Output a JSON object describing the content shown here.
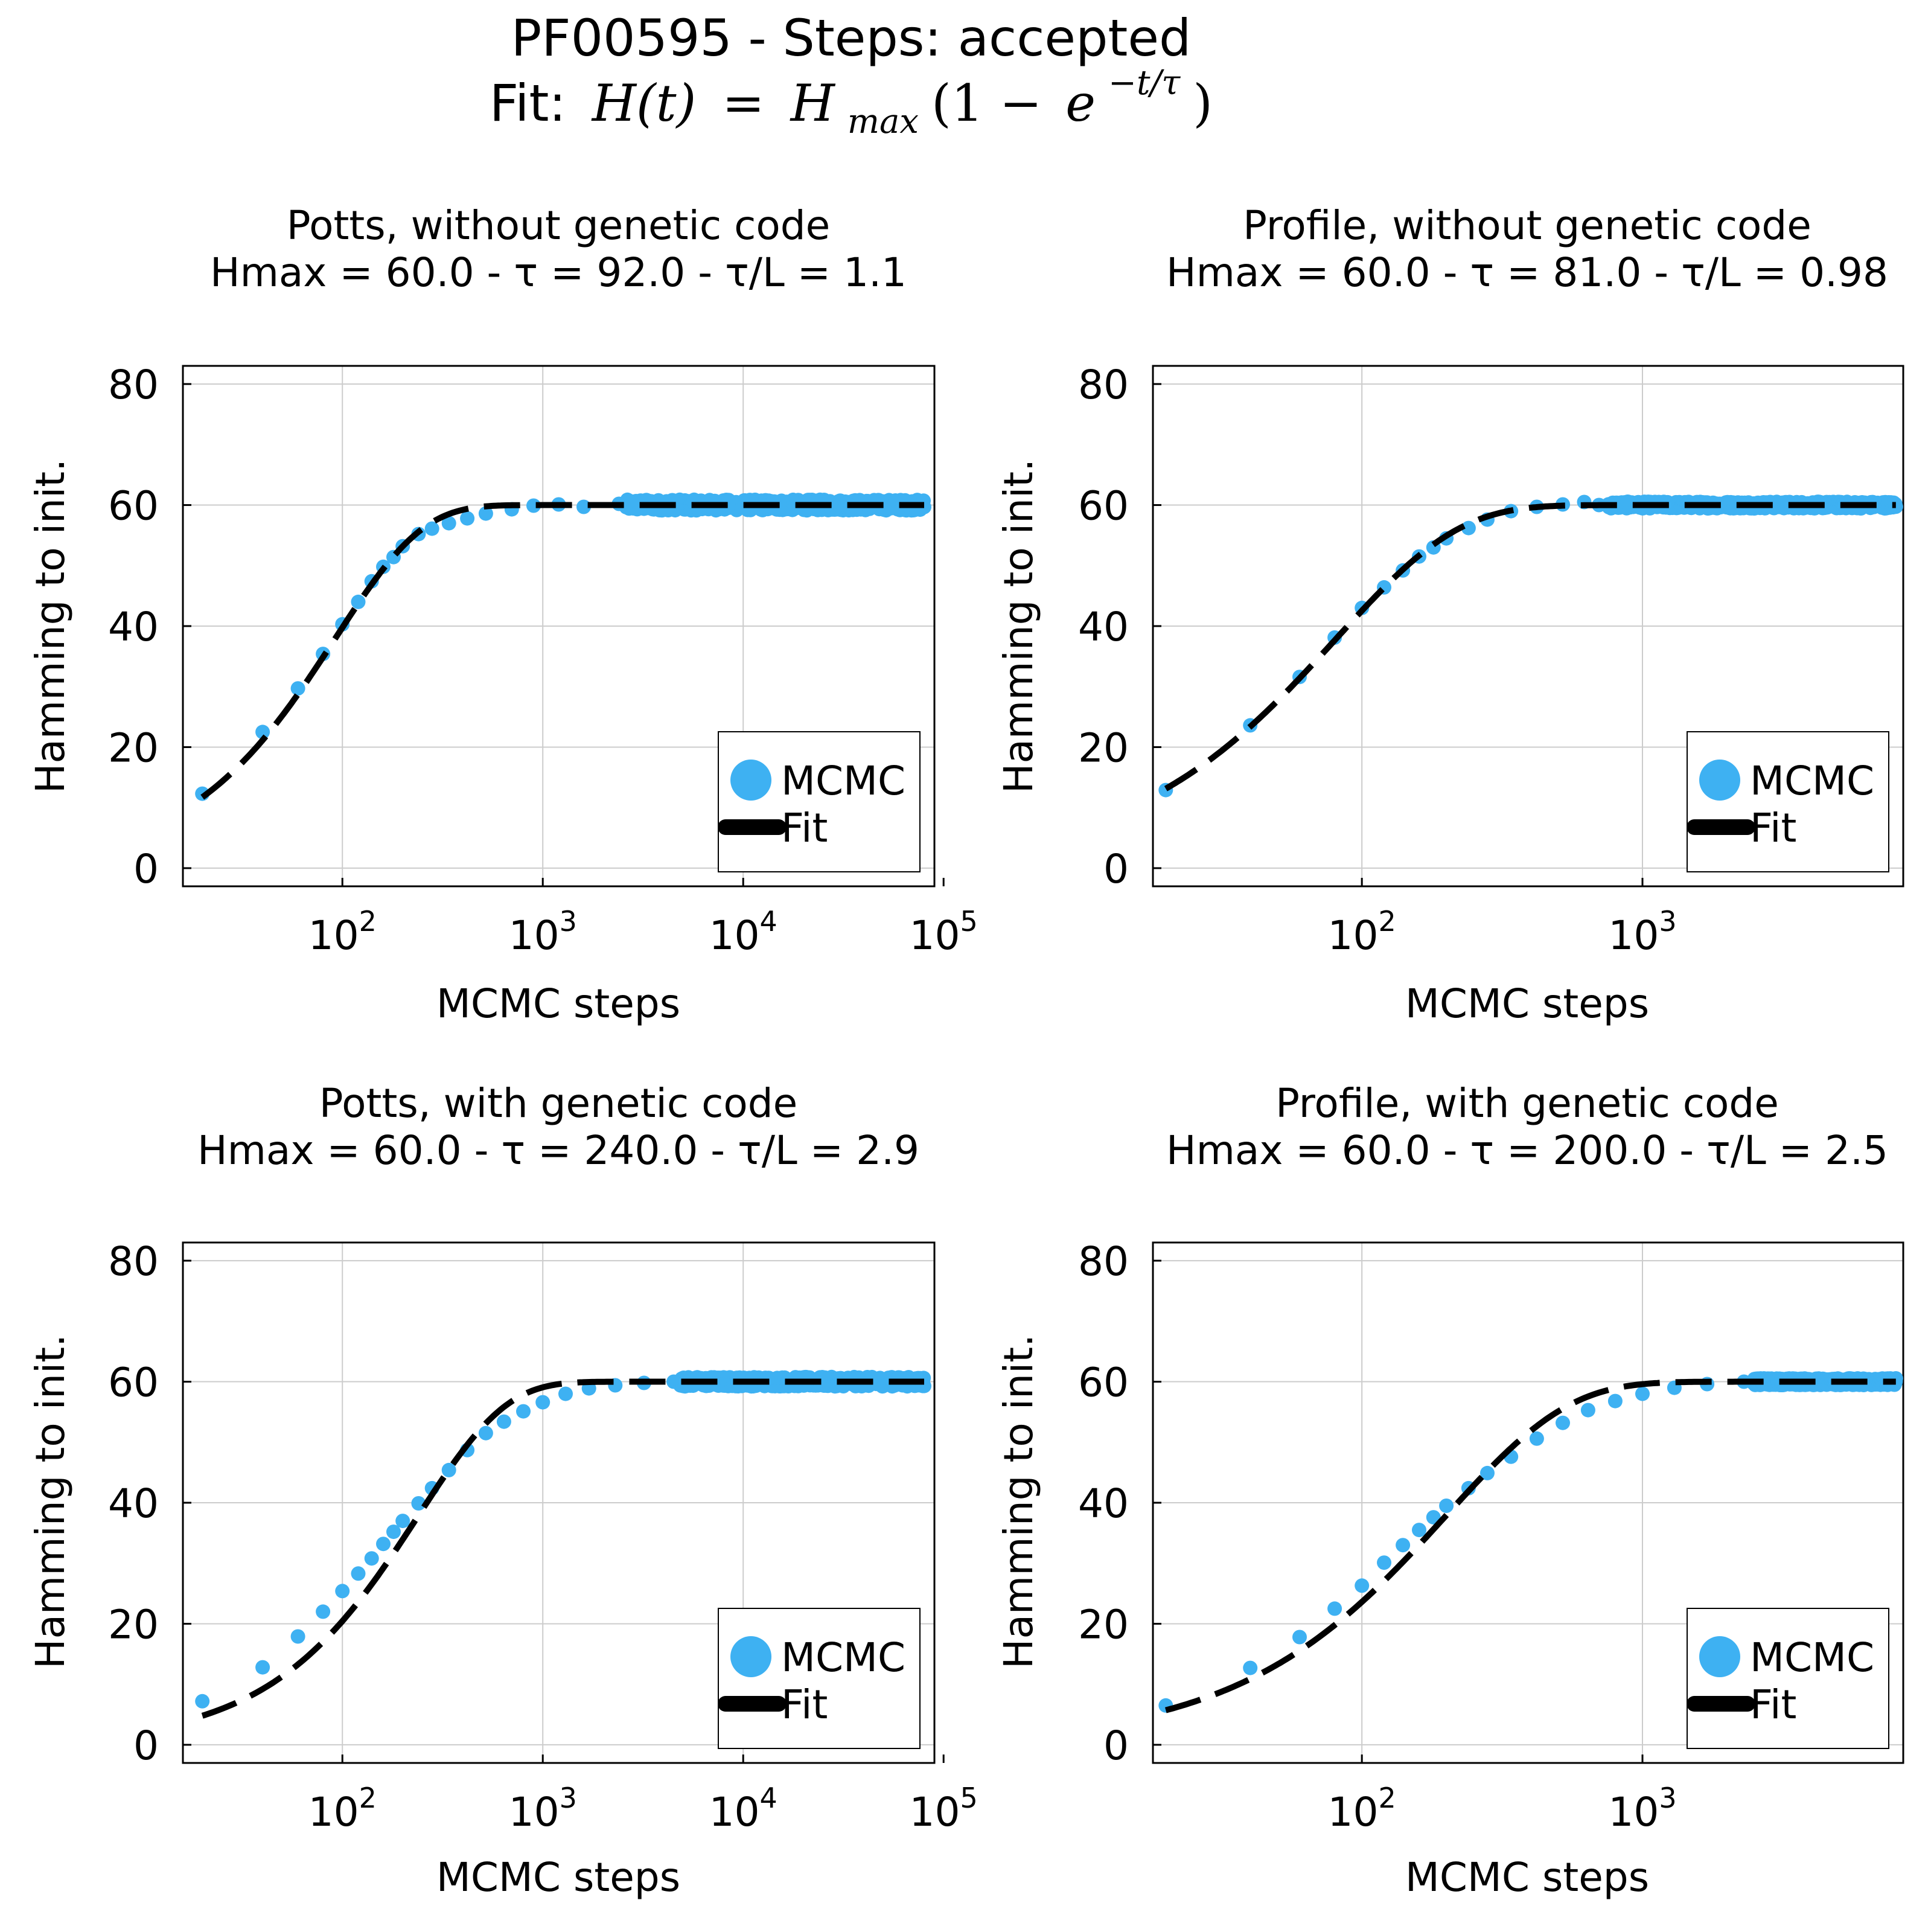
{
  "figure": {
    "title": "PF00595 - Steps: accepted",
    "subtitle_prefix": "Fit:",
    "formula": {
      "lhs": "H(t)",
      "equals": "=",
      "h": "H",
      "h_sub": "max",
      "open": "(1 −",
      "e": "e",
      "exponent": "−t/τ",
      "close": ")"
    }
  },
  "colors": {
    "mcmc": "#3EB1F2",
    "fit": "#000000",
    "grid": "#CCCCCC",
    "frame": "#000000"
  },
  "chart_data": [
    {
      "type": "scatter",
      "title": "Potts, without genetic code",
      "subtitle": "Hmax = 60.0 - τ = 92.0 - τ/L = 1.1",
      "xlabel": "MCMC steps",
      "ylabel": "Hamming to init.",
      "xscale": "log",
      "xlim": [
        16,
        90000
      ],
      "ylim": [
        -3,
        83
      ],
      "xticks": [
        {
          "value": 100,
          "base": "10",
          "exp": "2"
        },
        {
          "value": 1000,
          "base": "10",
          "exp": "3"
        },
        {
          "value": 10000,
          "base": "10",
          "exp": "4"
        },
        {
          "value": 100000,
          "base": "10",
          "exp": "5"
        }
      ],
      "yticks": [
        0,
        20,
        40,
        60,
        80
      ],
      "grid": true,
      "legend": {
        "position": "bottom-right",
        "entries": [
          "MCMC",
          "Fit"
        ]
      },
      "series": [
        {
          "name": "MCMC",
          "kind": "scatter",
          "x_range": [
            20,
            80000
          ],
          "plateau": 60,
          "noise": 0.8,
          "points": [
            [
              20,
              12.3
            ],
            [
              40,
              22.5
            ],
            [
              60,
              29.7
            ],
            [
              80,
              35.4
            ],
            [
              100,
              40.3
            ],
            [
              120,
              44.0
            ],
            [
              140,
              47.4
            ],
            [
              160,
              49.8
            ],
            [
              180,
              51.4
            ],
            [
              200,
              53.2
            ],
            [
              240,
              55.2
            ],
            [
              280,
              56.1
            ],
            [
              340,
              57.0
            ],
            [
              420,
              57.8
            ],
            [
              520,
              58.6
            ],
            [
              700,
              59.3
            ],
            [
              900,
              59.9
            ],
            [
              1200,
              60.1
            ],
            [
              1600,
              59.7
            ],
            [
              2400,
              60.2
            ]
          ]
        },
        {
          "name": "Fit",
          "kind": "line",
          "hmax": 60.0,
          "tau": 92.0,
          "x_range": [
            20,
            80000
          ]
        }
      ]
    },
    {
      "type": "scatter",
      "title": "Profile, without genetic code",
      "subtitle": "Hmax = 60.0 - τ = 81.0 - τ/L = 0.98",
      "xlabel": "MCMC steps",
      "ylabel": "Hamming to init.",
      "xscale": "log",
      "xlim": [
        18,
        8500
      ],
      "ylim": [
        -3,
        83
      ],
      "xticks": [
        {
          "value": 100,
          "base": "10",
          "exp": "2"
        },
        {
          "value": 1000,
          "base": "10",
          "exp": "3"
        }
      ],
      "yticks": [
        0,
        20,
        40,
        60,
        80
      ],
      "grid": true,
      "legend": {
        "position": "bottom-right",
        "entries": [
          "MCMC",
          "Fit"
        ]
      },
      "series": [
        {
          "name": "MCMC",
          "kind": "scatter",
          "x_range": [
            20,
            8000
          ],
          "plateau": 60,
          "noise": 0.5,
          "points": [
            [
              20,
              12.9
            ],
            [
              40,
              23.6
            ],
            [
              60,
              31.6
            ],
            [
              80,
              38.1
            ],
            [
              100,
              43.0
            ],
            [
              120,
              46.4
            ],
            [
              140,
              49.2
            ],
            [
              160,
              51.5
            ],
            [
              180,
              53.0
            ],
            [
              200,
              54.5
            ],
            [
              240,
              56.2
            ],
            [
              280,
              57.6
            ],
            [
              340,
              59.0
            ],
            [
              420,
              59.7
            ],
            [
              520,
              60.1
            ],
            [
              620,
              60.5
            ],
            [
              700,
              60.0
            ]
          ]
        },
        {
          "name": "Fit",
          "kind": "line",
          "hmax": 60.0,
          "tau": 81.0,
          "x_range": [
            20,
            8000
          ]
        }
      ]
    },
    {
      "type": "scatter",
      "title": "Potts, with genetic code",
      "subtitle": "Hmax = 60.0 - τ = 240.0 - τ/L = 2.9",
      "xlabel": "MCMC steps",
      "ylabel": "Hamming to init.",
      "xscale": "log",
      "xlim": [
        16,
        90000
      ],
      "ylim": [
        -3,
        83
      ],
      "xticks": [
        {
          "value": 100,
          "base": "10",
          "exp": "2"
        },
        {
          "value": 1000,
          "base": "10",
          "exp": "3"
        },
        {
          "value": 10000,
          "base": "10",
          "exp": "4"
        },
        {
          "value": 100000,
          "base": "10",
          "exp": "5"
        }
      ],
      "yticks": [
        0,
        20,
        40,
        60,
        80
      ],
      "grid": true,
      "legend": {
        "position": "bottom-right",
        "entries": [
          "MCMC",
          "Fit"
        ]
      },
      "series": [
        {
          "name": "MCMC",
          "kind": "scatter",
          "x_range": [
            20,
            80000
          ],
          "plateau": 60,
          "noise": 0.7,
          "points": [
            [
              20,
              7.2
            ],
            [
              40,
              12.8
            ],
            [
              60,
              17.9
            ],
            [
              80,
              22.0
            ],
            [
              100,
              25.4
            ],
            [
              120,
              28.3
            ],
            [
              140,
              30.8
            ],
            [
              160,
              33.2
            ],
            [
              180,
              35.2
            ],
            [
              200,
              37.0
            ],
            [
              240,
              39.9
            ],
            [
              280,
              42.4
            ],
            [
              340,
              45.4
            ],
            [
              420,
              48.7
            ],
            [
              520,
              51.5
            ],
            [
              640,
              53.4
            ],
            [
              800,
              55.1
            ],
            [
              1000,
              56.6
            ],
            [
              1300,
              58.0
            ],
            [
              1700,
              58.9
            ],
            [
              2300,
              59.4
            ],
            [
              3200,
              59.8
            ],
            [
              4500,
              60.0
            ]
          ]
        },
        {
          "name": "Fit",
          "kind": "line",
          "hmax": 60.0,
          "tau": 240.0,
          "x_range": [
            20,
            80000
          ]
        }
      ]
    },
    {
      "type": "scatter",
      "title": "Profile, with genetic code",
      "subtitle": "Hmax = 60.0 - τ = 200.0 - τ/L = 2.5",
      "xlabel": "MCMC steps",
      "ylabel": "Hamming to init.",
      "xscale": "log",
      "xlim": [
        18,
        8500
      ],
      "ylim": [
        -3,
        83
      ],
      "xticks": [
        {
          "value": 100,
          "base": "10",
          "exp": "2"
        },
        {
          "value": 1000,
          "base": "10",
          "exp": "3"
        }
      ],
      "yticks": [
        0,
        20,
        40,
        60,
        80
      ],
      "grid": true,
      "legend": {
        "position": "bottom-right",
        "entries": [
          "MCMC",
          "Fit"
        ]
      },
      "series": [
        {
          "name": "MCMC",
          "kind": "scatter",
          "x_range": [
            20,
            8000
          ],
          "plateau": 60,
          "noise": 0.5,
          "points": [
            [
              20,
              6.5
            ],
            [
              40,
              12.7
            ],
            [
              60,
              17.8
            ],
            [
              80,
              22.5
            ],
            [
              100,
              26.3
            ],
            [
              120,
              30.1
            ],
            [
              140,
              33.0
            ],
            [
              160,
              35.5
            ],
            [
              180,
              37.6
            ],
            [
              200,
              39.5
            ],
            [
              240,
              42.4
            ],
            [
              280,
              44.9
            ],
            [
              340,
              47.6
            ],
            [
              420,
              50.6
            ],
            [
              520,
              53.2
            ],
            [
              640,
              55.3
            ],
            [
              800,
              56.8
            ],
            [
              1000,
              58.0
            ],
            [
              1300,
              59.0
            ],
            [
              1700,
              59.6
            ],
            [
              2300,
              60.0
            ]
          ]
        },
        {
          "name": "Fit",
          "kind": "line",
          "hmax": 60.0,
          "tau": 200.0,
          "x_range": [
            20,
            8000
          ]
        }
      ]
    }
  ]
}
